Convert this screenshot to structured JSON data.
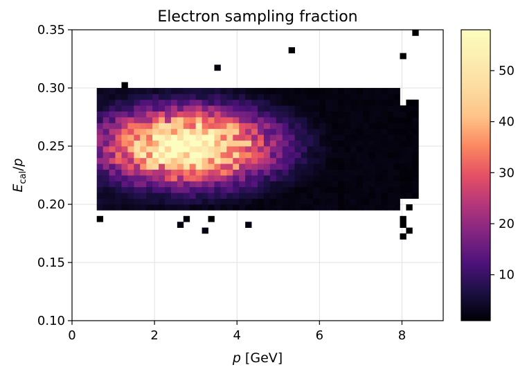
{
  "chart_data": {
    "type": "heatmap",
    "title": "Electron sampling fraction",
    "xlabel": {
      "italic": "p",
      "rest": " [GeV]"
    },
    "ylabel": {
      "main": "E",
      "sub": "cal",
      "rest": "/",
      "italic2": "p"
    },
    "xlim": [
      0,
      9
    ],
    "ylim": [
      0.1,
      0.35
    ],
    "xticks": [
      0,
      2,
      4,
      6,
      8
    ],
    "xtick_labels": [
      "0",
      "2",
      "4",
      "6",
      "8"
    ],
    "yticks": [
      0.1,
      0.15,
      0.2,
      0.25,
      0.3,
      0.35
    ],
    "ytick_labels": [
      "0.10",
      "0.15",
      "0.20",
      "0.25",
      "0.30",
      "0.35"
    ],
    "grid": true,
    "colormap": "magma",
    "colorbar": {
      "range": [
        1,
        58
      ],
      "ticks": [
        10,
        20,
        30,
        40,
        50
      ],
      "tick_labels": [
        "10",
        "20",
        "30",
        "40",
        "50"
      ]
    },
    "bins": {
      "x_width": 0.15,
      "y_width": 0.005
    },
    "distribution": {
      "p_range": [
        0.6,
        8.4
      ],
      "ratio_peak": 0.25,
      "ratio_core_range": [
        0.195,
        0.3
      ],
      "peak_count_near_p": 2.8,
      "max_count": 58
    }
  }
}
